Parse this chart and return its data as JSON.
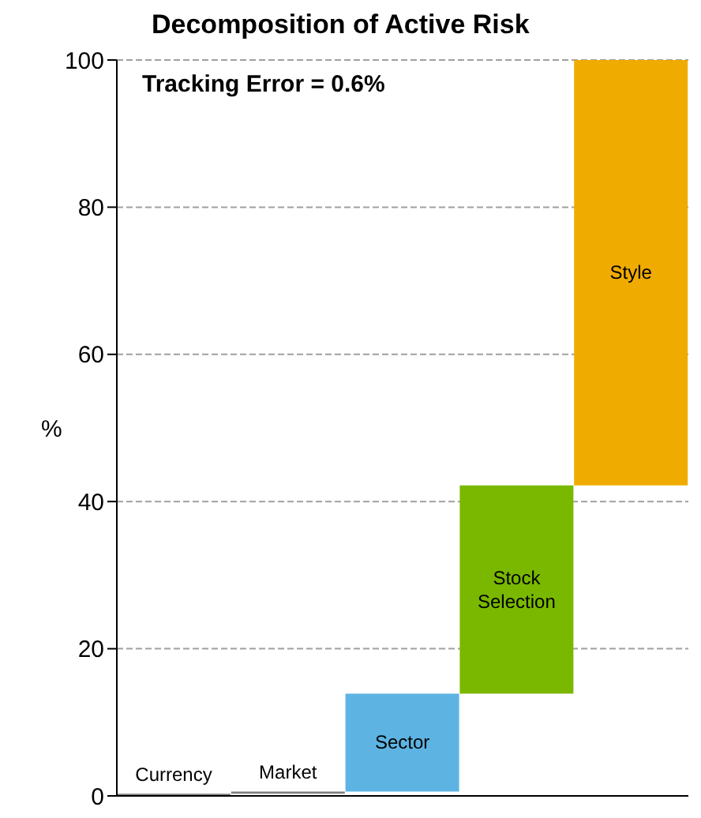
{
  "chart_data": {
    "type": "bar",
    "title": "Decomposition of Active Risk",
    "ylabel": "%",
    "annotations": [
      "Tracking Error = 0.6%"
    ],
    "categories": [
      "Currency",
      "Market",
      "Sector",
      "Stock Selection",
      "Style"
    ],
    "base": [
      0,
      0.3,
      0.6,
      13.9,
      42.2
    ],
    "values": [
      0.3,
      0.3,
      13.3,
      28.3,
      57.8
    ],
    "colors": [
      "#808080",
      "#808080",
      "#5db4e3",
      "#7ab800",
      "#f0ab00"
    ],
    "ylim": [
      0,
      100
    ],
    "yticks": [
      0,
      20,
      40,
      60,
      80,
      100
    ],
    "grid": "y"
  }
}
